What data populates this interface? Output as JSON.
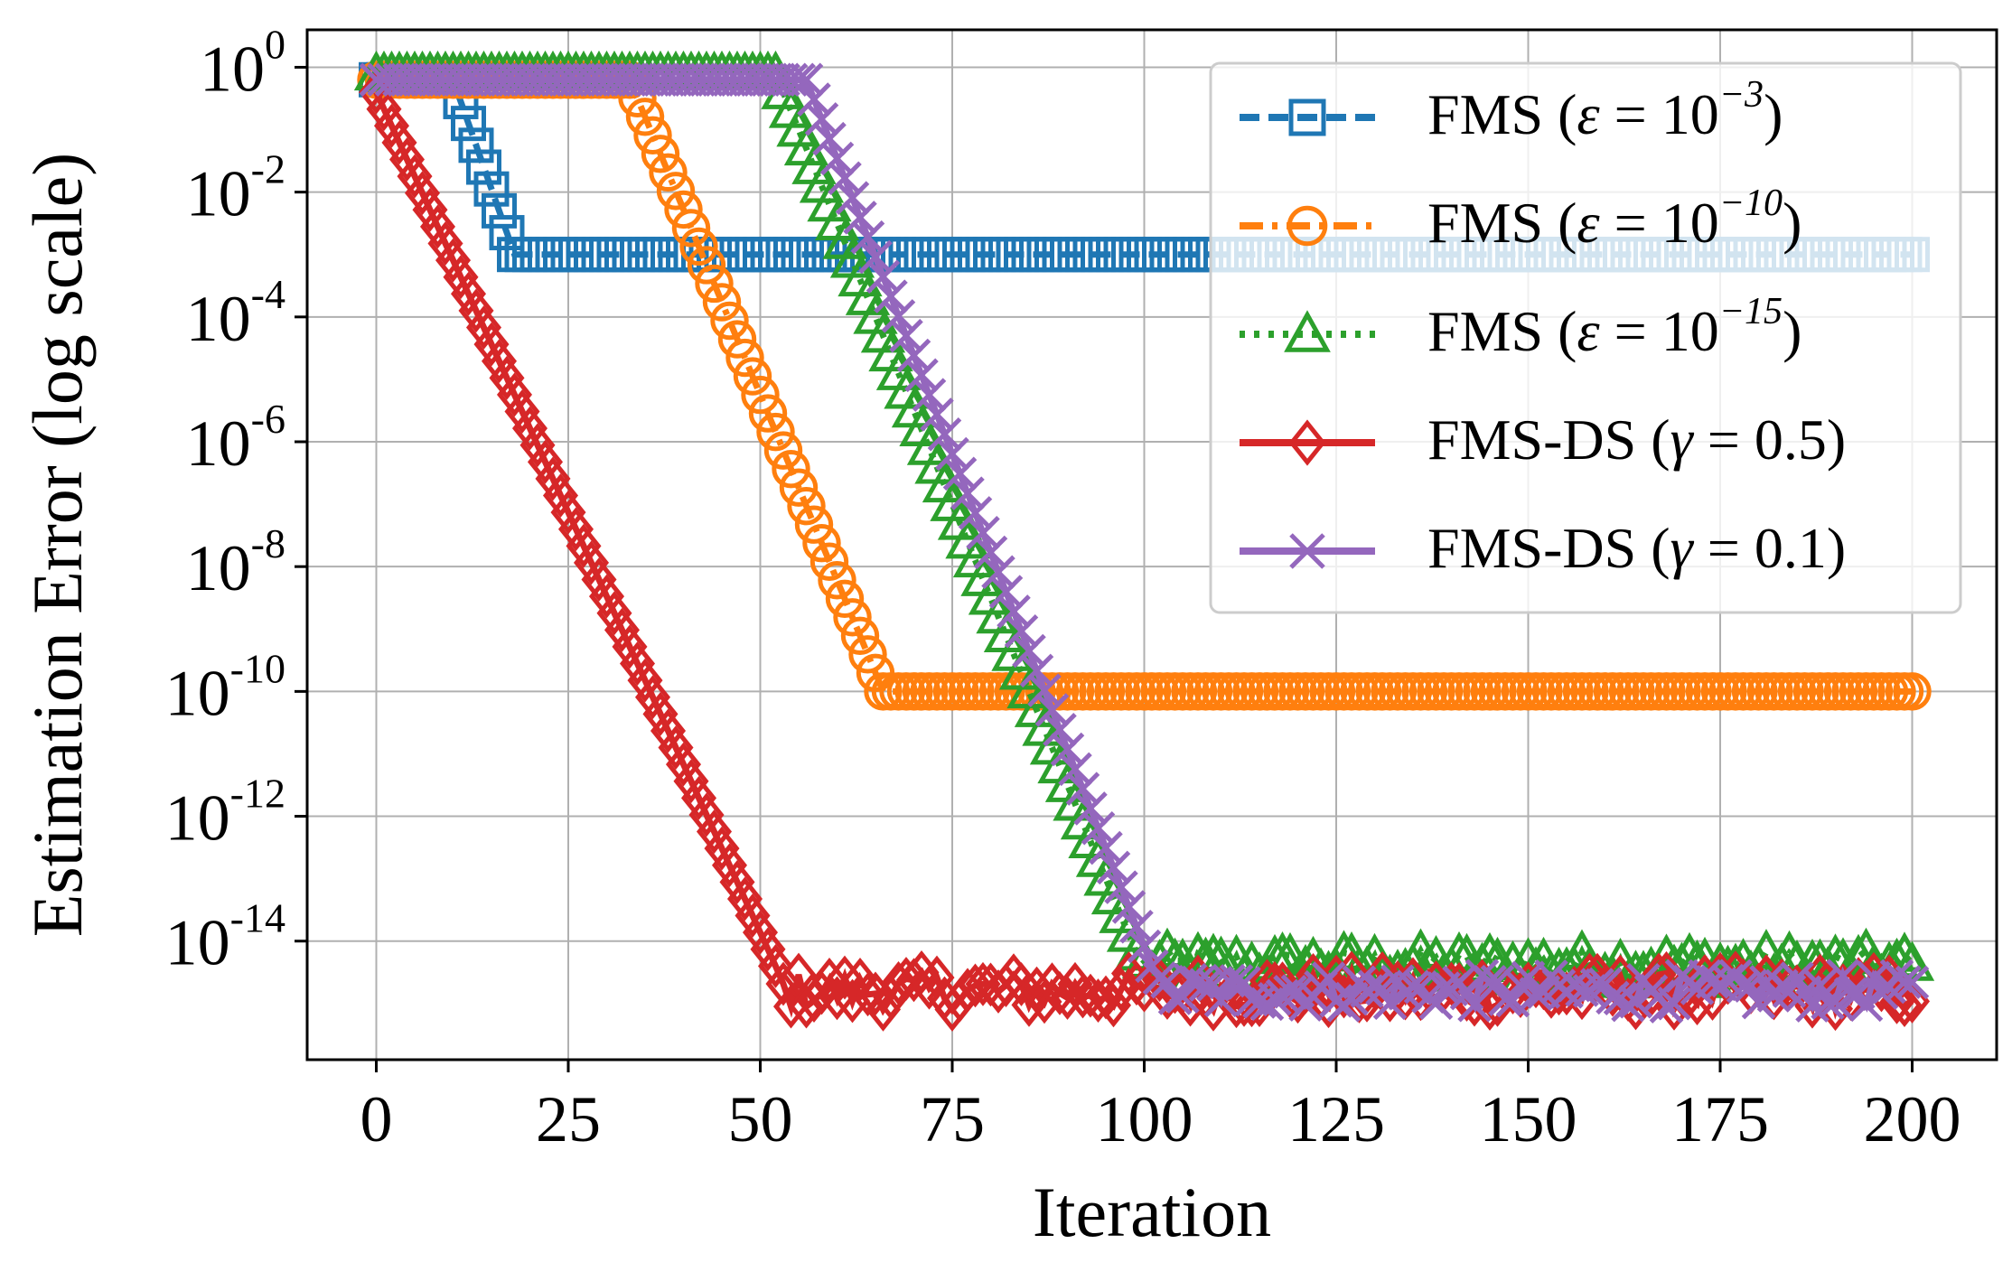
{
  "chart_data": {
    "type": "line",
    "xlabel": "Iteration",
    "ylabel": "Estimation Error (log scale)",
    "xlim": [
      -9,
      211
    ],
    "ylim_log10": [
      -15.9,
      0.6
    ],
    "y_scale": "log",
    "grid": true,
    "legend_position": "top-right",
    "x_ticks": [
      0,
      25,
      50,
      75,
      100,
      125,
      150,
      175,
      200
    ],
    "x_tick_labels": [
      "0",
      "25",
      "50",
      "75",
      "100",
      "125",
      "150",
      "175",
      "200"
    ],
    "y_ticks": [
      0,
      -2,
      -4,
      -6,
      -8,
      -10,
      -12,
      -14
    ],
    "y_tick_labels": [
      {
        "base": "10",
        "exp": "0"
      },
      {
        "base": "10",
        "exp": "-2"
      },
      {
        "base": "10",
        "exp": "-4"
      },
      {
        "base": "10",
        "exp": "-6"
      },
      {
        "base": "10",
        "exp": "-8"
      },
      {
        "base": "10",
        "exp": "-10"
      },
      {
        "base": "10",
        "exp": "-12"
      },
      {
        "base": "10",
        "exp": "-14"
      }
    ],
    "series": [
      {
        "name": "FMS (ε = 10^-3)",
        "legend": {
          "prefix": "FMS (",
          "var": "ε",
          "eq": " = ",
          "base": "10",
          "exp": "−3",
          "suffix": ")"
        },
        "color": "#1f77b4",
        "marker": "square",
        "linestyle": "dashed",
        "segments": [
          {
            "x0": 0,
            "x1": 10,
            "y0": -0.2,
            "y1": -0.2
          },
          {
            "x0": 10,
            "x1": 18,
            "y0": -0.2,
            "y1": -3.0
          },
          {
            "x0": 18,
            "x1": 200,
            "y0": -3.0,
            "y1": -3.0
          }
        ]
      },
      {
        "name": "FMS (ε = 10^-10)",
        "legend": {
          "prefix": "FMS (",
          "var": "ε",
          "eq": " = ",
          "base": "10",
          "exp": "−10",
          "suffix": ")"
        },
        "color": "#ff7f0e",
        "marker": "circle",
        "linestyle": "dashdot",
        "segments": [
          {
            "x0": 0,
            "x1": 33,
            "y0": -0.2,
            "y1": -0.2
          },
          {
            "x0": 33,
            "x1": 66,
            "y0": -0.2,
            "y1": -10.0
          },
          {
            "x0": 66,
            "x1": 200,
            "y0": -10.0,
            "y1": -10.0
          }
        ]
      },
      {
        "name": "FMS (ε = 10^-15)",
        "legend": {
          "prefix": "FMS (",
          "var": "ε",
          "eq": " = ",
          "base": "10",
          "exp": "−15",
          "suffix": ")"
        },
        "color": "#2ca02c",
        "marker": "triangle",
        "linestyle": "dotted",
        "segments": [
          {
            "x0": 0,
            "x1": 52,
            "y0": -0.1,
            "y1": -0.1
          },
          {
            "x0": 52,
            "x1": 99,
            "y0": -0.1,
            "y1": -14.2
          },
          {
            "x0": 99,
            "x1": 200,
            "y0": -14.4,
            "y1": -14.4,
            "noise": 0.25
          }
        ]
      },
      {
        "name": "FMS-DS (γ = 0.5)",
        "legend": {
          "prefix": "FMS-DS (",
          "var": "γ",
          "eq": " = ",
          "value": "0.5",
          "suffix": ")"
        },
        "color": "#d62728",
        "marker": "diamond",
        "linestyle": "solid",
        "segments": [
          {
            "x0": 0,
            "x1": 52,
            "y0": -0.4,
            "y1": -14.4
          },
          {
            "x0": 52,
            "x1": 200,
            "y0": -14.8,
            "y1": -14.8,
            "noise": 0.3
          }
        ]
      },
      {
        "name": "FMS-DS (γ = 0.1)",
        "legend": {
          "prefix": "FMS-DS (",
          "var": "γ",
          "eq": " = ",
          "value": "0.1",
          "suffix": ")"
        },
        "color": "#9467bd",
        "marker": "x",
        "linestyle": "solid",
        "segments": [
          {
            "x0": 0,
            "x1": 56,
            "y0": -0.2,
            "y1": -0.2
          },
          {
            "x0": 56,
            "x1": 101,
            "y0": -0.2,
            "y1": -14.4
          },
          {
            "x0": 101,
            "x1": 200,
            "y0": -14.8,
            "y1": -14.8,
            "noise": 0.25
          }
        ]
      }
    ]
  }
}
